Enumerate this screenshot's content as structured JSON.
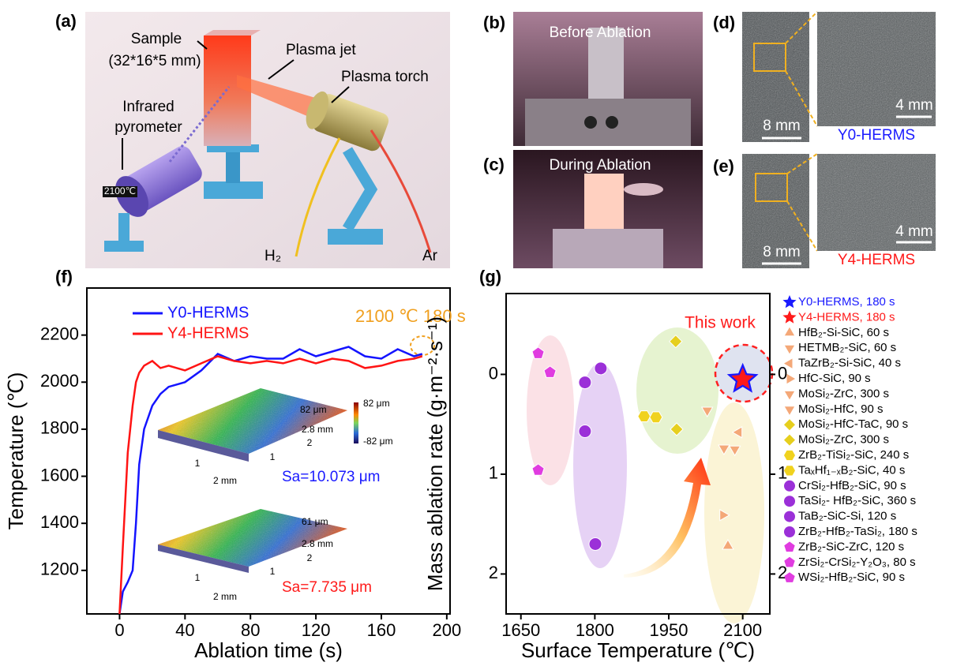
{
  "panels": {
    "a": {
      "label": "(a)",
      "sample": "Sample",
      "sample_size": "(32*16*5 mm)",
      "plasma_jet": "Plasma jet",
      "plasma_torch": "Plasma torch",
      "pyrometer_1": "Infrared",
      "pyrometer_2": "pyrometer",
      "display": "2100℃",
      "h2": "H₂",
      "ar": "Ar"
    },
    "b": {
      "label": "(b)",
      "caption": "Before Ablation"
    },
    "c": {
      "label": "(c)",
      "caption": "During Ablation"
    },
    "d": {
      "label": "(d)",
      "scale_left": "8 mm",
      "scale_right": "4 mm",
      "sample": "Y0-HERMS"
    },
    "e": {
      "label": "(e)",
      "scale_left": "8 mm",
      "scale_right": "4 mm",
      "sample": "Y4-HERMS"
    }
  },
  "chart_data": [
    {
      "type": "line",
      "panel_label": "(f)",
      "xlabel": "Ablation time (s)",
      "ylabel": "Temperature (℃)",
      "x": [
        0,
        2,
        5,
        8,
        10,
        12,
        15,
        20,
        25,
        30,
        40,
        50,
        60,
        70,
        80,
        90,
        100,
        110,
        120,
        130,
        140,
        150,
        160,
        170,
        180,
        185
      ],
      "series": [
        {
          "name": "Y0-HERMS",
          "color": "#1414ff",
          "values": [
            1015,
            1110,
            1150,
            1200,
            1400,
            1650,
            1800,
            1900,
            1950,
            1980,
            2000,
            2050,
            2120,
            2090,
            2110,
            2100,
            2100,
            2140,
            2110,
            2130,
            2150,
            2110,
            2100,
            2140,
            2110,
            2120
          ]
        },
        {
          "name": "Y4-HERMS",
          "color": "#ff1414",
          "values": [
            1015,
            1300,
            1700,
            1900,
            2000,
            2040,
            2070,
            2090,
            2060,
            2070,
            2050,
            2080,
            2110,
            2090,
            2080,
            2090,
            2080,
            2100,
            2080,
            2100,
            2090,
            2060,
            2070,
            2090,
            2100,
            2110
          ]
        }
      ],
      "xlim": [
        -20,
        202
      ],
      "ylim": [
        1015,
        2400
      ],
      "xticks": [
        0,
        40,
        80,
        120,
        160,
        200
      ],
      "yticks": [
        1200,
        1400,
        1600,
        1800,
        2000,
        2200
      ],
      "legend": "upper left",
      "annotations": {
        "condition": "2100 ℃ 180 s",
        "sa_y0": "Sa=10.073 μm",
        "sa_y4": "Sa=7.735 μm",
        "inset_top_max": "82 μm",
        "inset_top_width": "2.8 mm",
        "inset_top_length": "2 mm",
        "colorbar_max": "82 μm",
        "colorbar_min": "-82 μm",
        "inset_bottom_max": "61 μm",
        "inset_bottom_width": "2.8 mm",
        "inset_bottom_length": "2 mm",
        "axis_1": "1",
        "axis_2": "2"
      }
    },
    {
      "type": "scatter",
      "panel_label": "(g)",
      "xlabel": "Surface Temperature (℃)",
      "ylabel": "Mass ablation rate (g·m⁻²·s⁻¹)",
      "annotation": "This work",
      "xlim": [
        1620,
        2155
      ],
      "ylim": [
        2.4,
        -0.81
      ],
      "xticks": [
        1650,
        1800,
        1950,
        2100
      ],
      "yticks": [
        0,
        1,
        2
      ],
      "y2lim": [
        2.4,
        -0.81
      ],
      "y2ticks": [
        0,
        1,
        2
      ],
      "series": [
        {
          "name": "Y0-HERMS, 180 s",
          "marker": "star",
          "color": "#1a1aff",
          "x": [
            2100
          ],
          "values": [
            0.05
          ]
        },
        {
          "name": "Y4-HERMS, 180 s",
          "marker": "star",
          "color": "#ff1a1a",
          "x": [
            2100
          ],
          "values": [
            0.05
          ]
        },
        {
          "name": "HfB₂-Si-SiC, 60 s",
          "marker": "triangle-up",
          "color": "#f4a878",
          "x": [
            2070
          ],
          "values": [
            1.72
          ]
        },
        {
          "name": "HETMB₂-SiC, 60 s",
          "marker": "triangle-down",
          "color": "#f4a878",
          "x": [
            2084
          ],
          "values": [
            0.75
          ]
        },
        {
          "name": "TaZrB₂-Si-SiC, 40 s",
          "marker": "triangle-left",
          "color": "#f4a878",
          "x": [
            2092
          ],
          "values": [
            0.58
          ]
        },
        {
          "name": "HfC-SiC, 90 s",
          "marker": "triangle-right",
          "color": "#f4a878",
          "x": [
            2060
          ],
          "values": [
            1.41
          ]
        },
        {
          "name": "MoSi₂-ZrC, 300 s",
          "marker": "triangle-down",
          "color": "#f4a878",
          "x": [
            2028
          ],
          "values": [
            0.36
          ]
        },
        {
          "name": "MoSi₂-HfC, 90 s",
          "marker": "triangle-down",
          "color": "#f4a878",
          "x": [
            2062
          ],
          "values": [
            0.74
          ]
        },
        {
          "name": "MoSi₂-HfC-TaC, 90 s",
          "marker": "diamond",
          "color": "#e6cf1e",
          "x": [
            1964
          ],
          "values": [
            -0.33
          ]
        },
        {
          "name": "MoSi₂-ZrC, 300 s",
          "marker": "diamond",
          "color": "#e6cf1e",
          "x": [
            1966
          ],
          "values": [
            0.55
          ]
        },
        {
          "name": "ZrB₂-TiSi₂-SiC, 240 s",
          "marker": "hexagon",
          "color": "#f0d21e",
          "x": [
            1900
          ],
          "values": [
            0.42
          ]
        },
        {
          "name": "TaₓHf₁₋ₓB₂-SiC, 40 s",
          "marker": "hexagon",
          "color": "#f0d21e",
          "x": [
            1924
          ],
          "values": [
            0.43
          ]
        },
        {
          "name": "CrSi₂-HfB₂-SiC, 90 s",
          "marker": "half-circle",
          "color": "#9b30d8",
          "x": [
            1780
          ],
          "values": [
            0.08
          ]
        },
        {
          "name": "TaSi₂- HfB₂-SiC, 360 s",
          "marker": "half-circle",
          "color": "#9b30d8",
          "x": [
            1812
          ],
          "values": [
            -0.06
          ]
        },
        {
          "name": "TaB₂-SiC-Si, 120 s",
          "marker": "half-circle",
          "color": "#9b30d8",
          "x": [
            1801
          ],
          "values": [
            1.7
          ]
        },
        {
          "name": "ZrB₂-HfB₂-TaSi₂, 180 s",
          "marker": "half-circle",
          "color": "#9b30d8",
          "x": [
            1780
          ],
          "values": [
            0.57
          ]
        },
        {
          "name": "ZrB₂-SiC-ZrC, 120 s",
          "marker": "pentagon",
          "color": "#e03ce0",
          "x": [
            1685
          ],
          "values": [
            -0.21
          ]
        },
        {
          "name": "ZrSi₂-CrSi₂-Y₂O₃, 80 s",
          "marker": "pentagon",
          "color": "#e03ce0",
          "x": [
            1709
          ],
          "values": [
            -0.02
          ]
        },
        {
          "name": "WSi₂-HfB₂-SiC, 90 s",
          "marker": "pentagon",
          "color": "#e03ce0",
          "x": [
            1685
          ],
          "values": [
            0.96
          ]
        }
      ]
    }
  ]
}
